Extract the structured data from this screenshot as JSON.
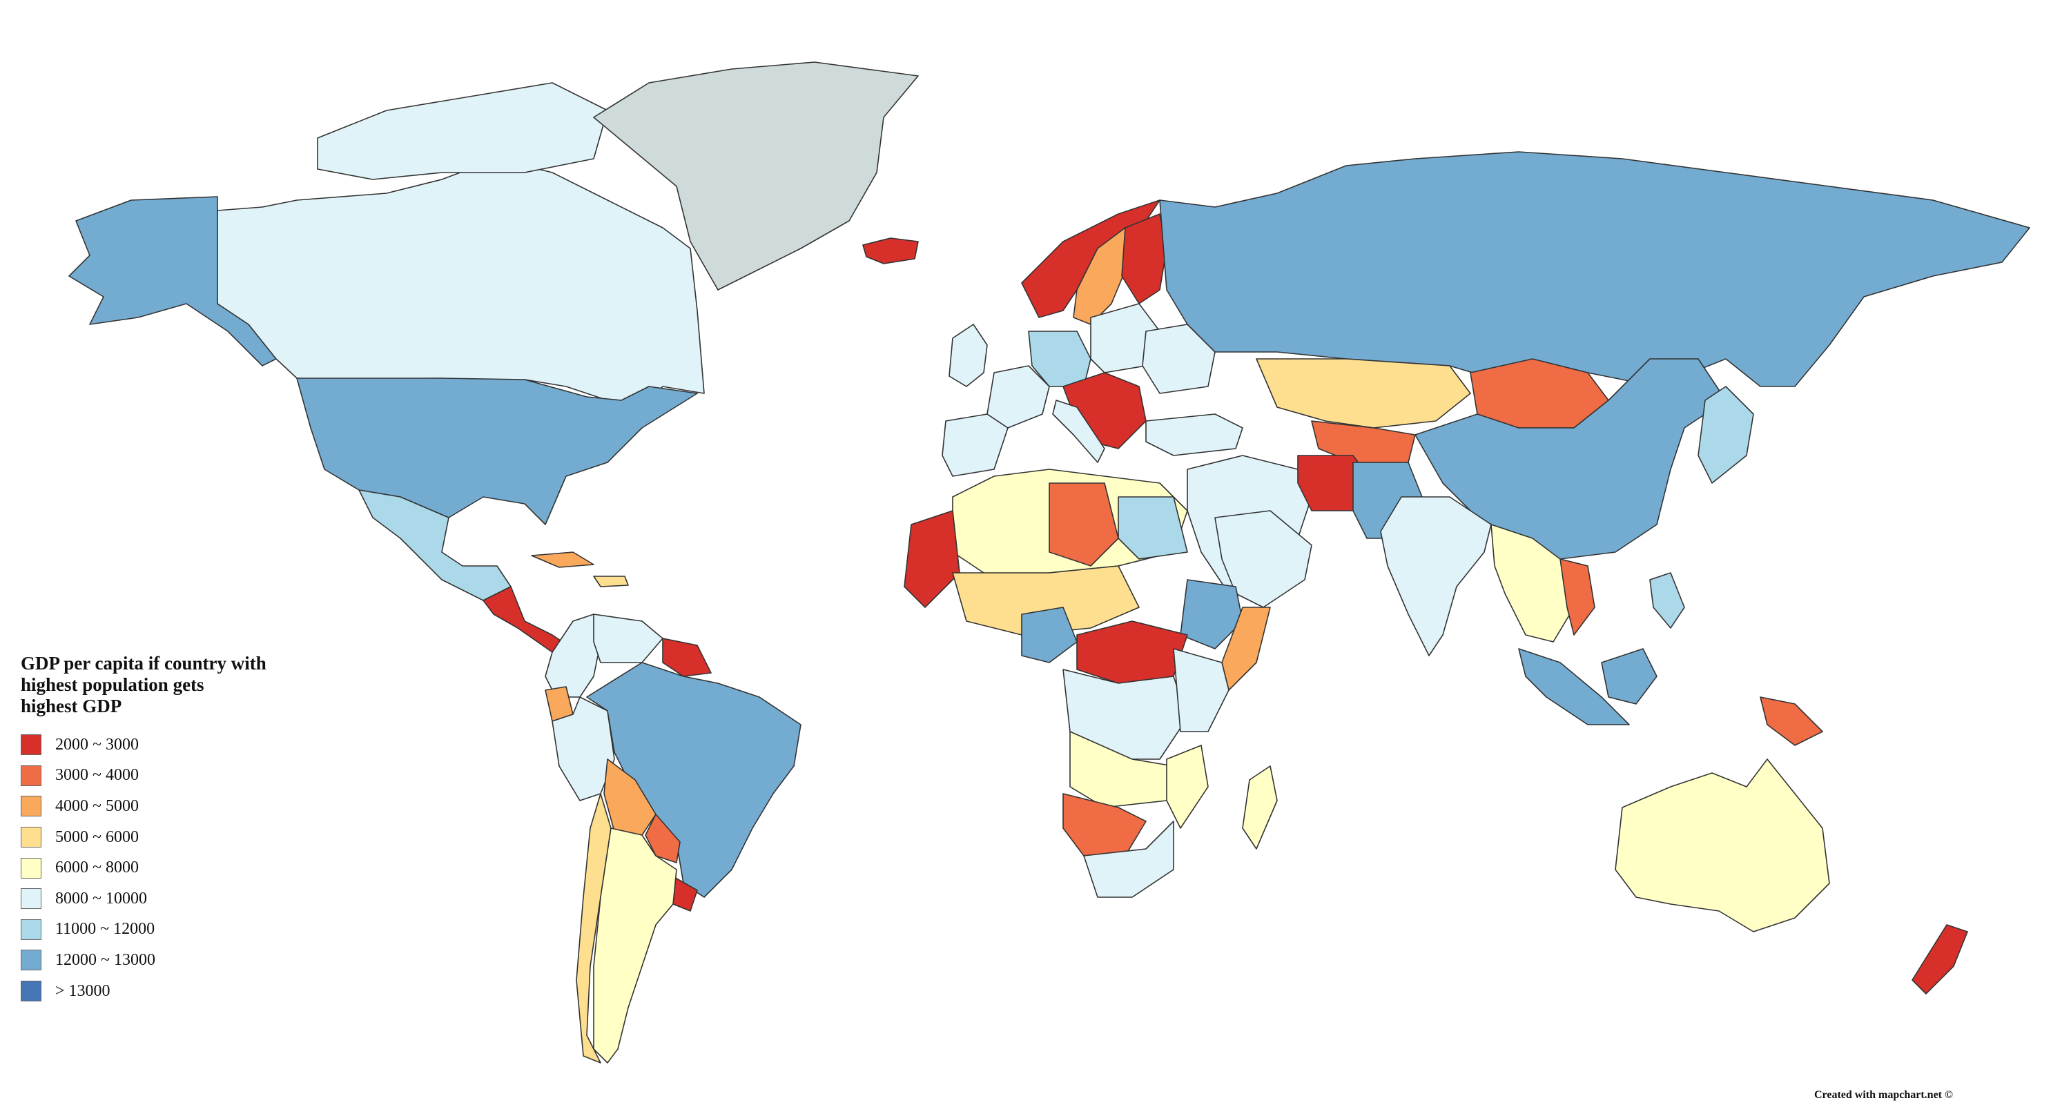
{
  "legend": {
    "title_lines": [
      "GDP per capita if country with",
      "highest population gets",
      "highest GDP"
    ],
    "items": [
      {
        "label": "2000 ~ 3000",
        "color": "#d7302b"
      },
      {
        "label": "3000 ~ 4000",
        "color": "#f06c45"
      },
      {
        "label": "4000 ~ 5000",
        "color": "#f9a85c"
      },
      {
        "label": "5000 ~ 6000",
        "color": "#fddf8f"
      },
      {
        "label": "6000 ~ 8000",
        "color": "#ffffc6"
      },
      {
        "label": "8000 ~ 10000",
        "color": "#e0f3f8"
      },
      {
        "label": "11000 ~ 12000",
        "color": "#abd9e9"
      },
      {
        "label": "12000 ~ 13000",
        "color": "#74acd1"
      },
      {
        "label": "> 13000",
        "color": "#4575b5"
      }
    ]
  },
  "no_data_color": "#cfdadb",
  "credit": "Created with mapchart.net ©"
}
